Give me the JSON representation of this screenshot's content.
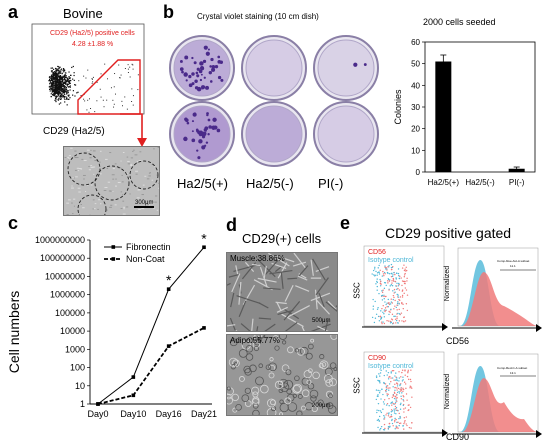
{
  "panel_letters": [
    "a",
    "b",
    "c",
    "d",
    "e"
  ],
  "panel_a": {
    "title": "Bovine",
    "gate_label": "CD29 (Ha2/5) positive cells",
    "gate_value": "4.28 ±1.88 %",
    "xlabel": "CD29 (Ha2/5)",
    "scale_bar": "300μm"
  },
  "panel_b": {
    "staining_title": "Crystal violet staining (10 cm dish)",
    "dish_labels": [
      "Ha2/5(+)",
      "Ha2/5(-)",
      "PI(-)"
    ]
  },
  "panel_d": {
    "title": "CD29(+) cells",
    "images": [
      {
        "label": "Muscle:38.86%",
        "scale": "500μm"
      },
      {
        "label": "Adipo:55.77%",
        "scale": "200μm"
      }
    ]
  },
  "panel_e": {
    "title": "CD29 positive gated",
    "rows": [
      {
        "marker": "CD56",
        "isotype": "Isotype control",
        "ylabel": "SSC",
        "xlabel": "CD56",
        "hist_ylabel": "Normalized",
        "hist_note1": "Comp-blue-AH-A subset",
        "hist_note2": "11.1"
      },
      {
        "marker": "CD90",
        "isotype": "Isotype control",
        "ylabel": "SSC",
        "xlabel": "CD90",
        "hist_ylabel": "Normalized",
        "hist_note1": "Comp-Red-C-A subset",
        "hist_note2": "13.1"
      }
    ]
  },
  "colors": {
    "red": "#e02020",
    "cyan": "#4fb8d8",
    "pink": "#f07a7a",
    "crystal_violet": "#6b3fa8"
  },
  "chart_data": [
    {
      "id": "colonies",
      "type": "bar",
      "title": "2000 cells seeded",
      "ylabel": "Colonies",
      "categories": [
        "Ha2/5(+)",
        "Ha2/5(-)",
        "PI(-)"
      ],
      "values": [
        51,
        0,
        1.5
      ],
      "errors": [
        3,
        0,
        0.8
      ],
      "ylim": [
        0,
        60
      ],
      "yticks": [
        0,
        10,
        20,
        30,
        40,
        50,
        60
      ]
    },
    {
      "id": "growth",
      "type": "line",
      "ylabel": "Cell numbers",
      "yscale": "log",
      "categories": [
        "Day0",
        "Day10",
        "Day16",
        "Day21"
      ],
      "yticks": [
        "1",
        "10",
        "100",
        "1000",
        "10000",
        "100000",
        "1000000",
        "10000000",
        "100000000",
        "1000000000"
      ],
      "series": [
        {
          "name": "Fibronectin",
          "style": "solid",
          "values": [
            1,
            30,
            2000000,
            400000000
          ]
        },
        {
          "name": "Non-Coat",
          "style": "dashed",
          "values": [
            1,
            3,
            1500,
            15000
          ]
        }
      ],
      "annotations": [
        {
          "x": "Day16",
          "text": "*"
        },
        {
          "x": "Day21",
          "text": "*"
        }
      ]
    }
  ]
}
